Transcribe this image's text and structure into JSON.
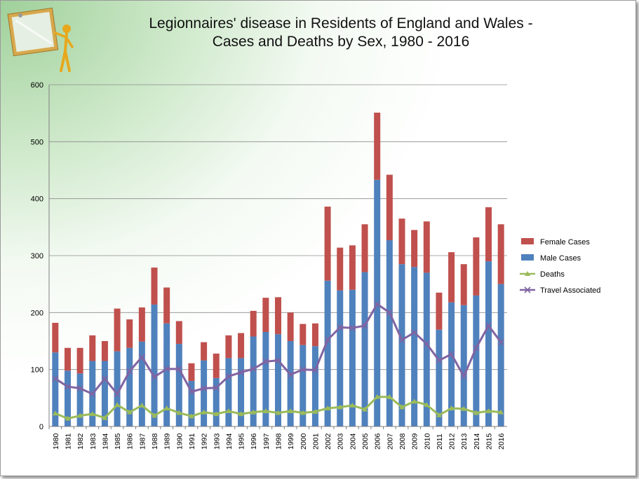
{
  "chart_data": {
    "type": "bar",
    "title_line1": "Legionnaires' disease in Residents of England and Wales -",
    "title_line2": "Cases and Deaths by Sex, 1980 - 2016",
    "xlabel": "",
    "ylabel": "",
    "ylim": [
      0,
      600
    ],
    "yticks": [
      0,
      100,
      200,
      300,
      400,
      500,
      600
    ],
    "grid": true,
    "legend_position": "right",
    "categories": [
      "1980",
      "1981",
      "1982",
      "1983",
      "1984",
      "1985",
      "1986",
      "1987",
      "1988",
      "1989",
      "1990",
      "1991",
      "1992",
      "1993",
      "1994",
      "1995",
      "1996",
      "1997",
      "1998",
      "1999",
      "2000",
      "2001",
      "2002",
      "2003",
      "2004",
      "2005",
      "2006",
      "2007",
      "2008",
      "2009",
      "2010",
      "2011",
      "2012",
      "2013",
      "2014",
      "2015",
      "2016"
    ],
    "series": [
      {
        "name": "Female Cases",
        "kind": "stacked-bar",
        "color": "#c0504d",
        "values": [
          52,
          40,
          45,
          45,
          35,
          75,
          50,
          60,
          65,
          63,
          40,
          31,
          32,
          43,
          40,
          44,
          45,
          60,
          65,
          50,
          37,
          40,
          130,
          75,
          78,
          84,
          118,
          115,
          80,
          65,
          90,
          65,
          88,
          72,
          102,
          95,
          105
        ]
      },
      {
        "name": "Male Cases",
        "kind": "stacked-bar",
        "color": "#4f81bd",
        "values": [
          130,
          98,
          93,
          115,
          115,
          132,
          138,
          149,
          214,
          181,
          145,
          80,
          116,
          85,
          120,
          120,
          158,
          166,
          162,
          150,
          143,
          141,
          256,
          239,
          240,
          271,
          433,
          327,
          285,
          280,
          270,
          170,
          218,
          213,
          230,
          290,
          250
        ]
      },
      {
        "name": "Deaths",
        "kind": "line",
        "color": "#9bbb59",
        "marker": "triangle",
        "values": [
          23,
          14,
          19,
          22,
          15,
          38,
          25,
          37,
          19,
          32,
          24,
          18,
          25,
          22,
          27,
          22,
          25,
          27,
          24,
          27,
          24,
          26,
          32,
          34,
          37,
          30,
          52,
          52,
          34,
          44,
          38,
          20,
          32,
          31,
          24,
          27,
          25
        ]
      },
      {
        "name": "Travel Associated",
        "kind": "line",
        "color": "#8064a2",
        "marker": "x",
        "values": [
          84,
          70,
          67,
          57,
          84,
          57,
          97,
          122,
          87,
          101,
          101,
          61,
          67,
          68,
          88,
          95,
          101,
          114,
          116,
          91,
          100,
          99,
          152,
          174,
          173,
          177,
          215,
          200,
          152,
          165,
          145,
          116,
          127,
          88,
          138,
          177,
          148
        ]
      }
    ]
  }
}
